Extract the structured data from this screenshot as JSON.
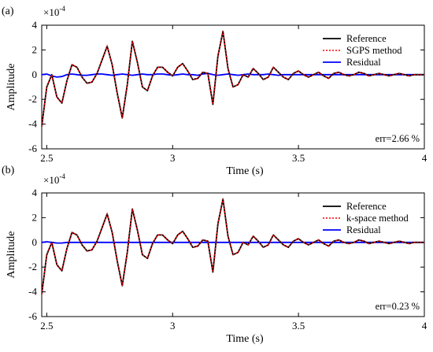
{
  "chart_data": [
    {
      "type": "line",
      "panel_label": "(a)",
      "exponent_label": "×10",
      "exponent_power": "-4",
      "xlabel": "Time (s)",
      "ylabel": "Amplitude",
      "xlim": [
        2.48,
        4.0
      ],
      "ylim": [
        -6,
        4
      ],
      "x_ticks": [
        "2.5",
        "3",
        "3.5",
        "4"
      ],
      "y_ticks": [
        "4",
        "2",
        "0",
        "-2",
        "-4",
        "-6"
      ],
      "x_tick_values": [
        2.5,
        3.0,
        3.5,
        4.0
      ],
      "y_tick_values": [
        4,
        2,
        0,
        -2,
        -4,
        -6
      ],
      "annotation": "err=2.66 %",
      "legend_position": "top-right",
      "series": [
        {
          "name": "Reference",
          "color": "#000000",
          "style": "solid"
        },
        {
          "name": "SGPS method",
          "color": "#ff0000",
          "style": "dotted"
        },
        {
          "name": "Residual",
          "color": "#0000ff",
          "style": "solid"
        }
      ],
      "x": [
        2.48,
        2.5,
        2.52,
        2.54,
        2.56,
        2.58,
        2.6,
        2.62,
        2.64,
        2.66,
        2.68,
        2.7,
        2.72,
        2.74,
        2.76,
        2.78,
        2.8,
        2.82,
        2.84,
        2.86,
        2.88,
        2.9,
        2.92,
        2.94,
        2.96,
        2.98,
        3.0,
        3.02,
        3.04,
        3.06,
        3.08,
        3.1,
        3.12,
        3.14,
        3.16,
        3.18,
        3.2,
        3.22,
        3.24,
        3.26,
        3.28,
        3.3,
        3.32,
        3.34,
        3.36,
        3.38,
        3.4,
        3.42,
        3.44,
        3.46,
        3.48,
        3.5,
        3.52,
        3.54,
        3.56,
        3.58,
        3.6,
        3.62,
        3.64,
        3.66,
        3.68,
        3.7,
        3.72,
        3.74,
        3.76,
        3.78,
        3.8,
        3.82,
        3.84,
        3.86,
        3.88,
        3.9,
        3.92,
        3.94,
        3.96,
        3.98,
        4.0
      ],
      "y_reference": [
        -4.2,
        -1.0,
        0.0,
        -1.8,
        -2.3,
        -0.5,
        0.8,
        0.6,
        -0.2,
        -0.7,
        -0.6,
        0.1,
        1.2,
        2.3,
        0.8,
        -1.5,
        -3.5,
        -0.8,
        2.7,
        1.0,
        -1.0,
        -1.3,
        -0.1,
        0.6,
        0.6,
        0.2,
        -0.1,
        0.6,
        0.9,
        0.3,
        -0.4,
        -0.3,
        0.2,
        0.1,
        -2.4,
        1.5,
        3.5,
        0.5,
        -1.0,
        -0.8,
        0.0,
        -0.2,
        0.5,
        0.1,
        -0.4,
        -0.2,
        0.6,
        0.2,
        -0.2,
        -0.4,
        0.1,
        0.3,
        0.0,
        -0.2,
        0.0,
        0.2,
        -0.1,
        -0.3,
        0.1,
        0.2,
        0.0,
        -0.1,
        0.0,
        0.2,
        0.1,
        -0.1,
        0.0,
        0.1,
        0.0,
        -0.1,
        0.0,
        0.1,
        0.0,
        -0.1,
        0.0,
        0.0,
        0.0
      ],
      "y_method": [
        -4.2,
        -1.0,
        0.0,
        -1.8,
        -2.3,
        -0.5,
        0.8,
        0.6,
        -0.2,
        -0.7,
        -0.6,
        0.1,
        1.2,
        2.3,
        0.8,
        -1.5,
        -3.5,
        -0.8,
        2.7,
        1.0,
        -1.0,
        -1.3,
        -0.1,
        0.6,
        0.6,
        0.2,
        -0.1,
        0.6,
        0.9,
        0.3,
        -0.4,
        -0.3,
        0.2,
        0.1,
        -2.4,
        1.5,
        3.5,
        0.5,
        -1.0,
        -0.8,
        0.0,
        -0.2,
        0.5,
        0.1,
        -0.4,
        -0.2,
        0.6,
        0.2,
        -0.2,
        -0.4,
        0.1,
        0.3,
        0.0,
        -0.2,
        0.0,
        0.2,
        -0.1,
        -0.3,
        0.1,
        0.2,
        0.0,
        -0.1,
        0.0,
        0.2,
        0.1,
        -0.1,
        0.0,
        0.1,
        0.0,
        -0.1,
        0.0,
        0.1,
        0.0,
        -0.1,
        0.0,
        0.0,
        0.0
      ],
      "y_residual": [
        0.0,
        0.05,
        -0.1,
        -0.2,
        -0.15,
        0.0,
        0.05,
        0.0,
        -0.05,
        -0.05,
        0.0,
        0.05,
        0.05,
        0.0,
        -0.05,
        0.0,
        0.05,
        0.0,
        -0.05,
        0.0,
        0.05,
        0.0,
        0.0,
        0.05,
        0.05,
        0.0,
        -0.05,
        0.0,
        0.05,
        0.0,
        0.0,
        -0.05,
        0.05,
        0.1,
        0.0,
        -0.05,
        0.0,
        0.05,
        0.0,
        -0.05,
        0.0,
        0.05,
        0.0,
        0.0,
        0.0,
        0.05,
        0.0,
        -0.05,
        0.0,
        0.0,
        0.0,
        0.0,
        0.0,
        0.0,
        0.0,
        0.0,
        0.0,
        0.0,
        0.0,
        0.0,
        0.0,
        0.0,
        0.0,
        0.0,
        0.0,
        0.0,
        0.0,
        0.0,
        0.0,
        0.0,
        0.0,
        0.0,
        0.0,
        0.0,
        0.0,
        0.0,
        0.0
      ]
    },
    {
      "type": "line",
      "panel_label": "(b)",
      "exponent_label": "×10",
      "exponent_power": "-4",
      "xlabel": "Time (s)",
      "ylabel": "Amplitude",
      "xlim": [
        2.48,
        4.0
      ],
      "ylim": [
        -6,
        4
      ],
      "x_ticks": [
        "2.5",
        "3",
        "3.5",
        "4"
      ],
      "y_ticks": [
        "4",
        "2",
        "0",
        "-2",
        "-4",
        "-6"
      ],
      "x_tick_values": [
        2.5,
        3.0,
        3.5,
        4.0
      ],
      "y_tick_values": [
        4,
        2,
        0,
        -2,
        -4,
        -6
      ],
      "annotation": "err=0.23 %",
      "legend_position": "top-right",
      "series": [
        {
          "name": "Reference",
          "color": "#000000",
          "style": "solid"
        },
        {
          "name": "k-space method",
          "color": "#ff0000",
          "style": "dotted"
        },
        {
          "name": "Residual",
          "color": "#0000ff",
          "style": "solid"
        }
      ],
      "x": [
        2.48,
        2.5,
        2.52,
        2.54,
        2.56,
        2.58,
        2.6,
        2.62,
        2.64,
        2.66,
        2.68,
        2.7,
        2.72,
        2.74,
        2.76,
        2.78,
        2.8,
        2.82,
        2.84,
        2.86,
        2.88,
        2.9,
        2.92,
        2.94,
        2.96,
        2.98,
        3.0,
        3.02,
        3.04,
        3.06,
        3.08,
        3.1,
        3.12,
        3.14,
        3.16,
        3.18,
        3.2,
        3.22,
        3.24,
        3.26,
        3.28,
        3.3,
        3.32,
        3.34,
        3.36,
        3.38,
        3.4,
        3.42,
        3.44,
        3.46,
        3.48,
        3.5,
        3.52,
        3.54,
        3.56,
        3.58,
        3.6,
        3.62,
        3.64,
        3.66,
        3.68,
        3.7,
        3.72,
        3.74,
        3.76,
        3.78,
        3.8,
        3.82,
        3.84,
        3.86,
        3.88,
        3.9,
        3.92,
        3.94,
        3.96,
        3.98,
        4.0
      ],
      "y_reference": [
        -4.2,
        -1.0,
        0.0,
        -1.8,
        -2.3,
        -0.5,
        0.8,
        0.6,
        -0.2,
        -0.7,
        -0.6,
        0.1,
        1.2,
        2.3,
        0.8,
        -1.5,
        -3.5,
        -0.8,
        2.7,
        1.0,
        -1.0,
        -1.3,
        -0.1,
        0.6,
        0.6,
        0.2,
        -0.1,
        0.6,
        0.9,
        0.3,
        -0.4,
        -0.3,
        0.2,
        0.1,
        -2.4,
        1.5,
        3.5,
        0.5,
        -1.0,
        -0.8,
        0.0,
        -0.2,
        0.5,
        0.1,
        -0.4,
        -0.2,
        0.6,
        0.2,
        -0.2,
        -0.4,
        0.1,
        0.3,
        0.0,
        -0.2,
        0.0,
        0.2,
        -0.1,
        -0.3,
        0.1,
        0.2,
        0.0,
        -0.1,
        0.0,
        0.2,
        0.1,
        -0.1,
        0.0,
        0.1,
        0.0,
        -0.1,
        0.0,
        0.1,
        0.0,
        -0.1,
        0.0,
        0.0,
        0.0
      ],
      "y_method": [
        -4.2,
        -1.0,
        0.0,
        -1.8,
        -2.3,
        -0.5,
        0.8,
        0.6,
        -0.2,
        -0.7,
        -0.6,
        0.1,
        1.2,
        2.3,
        0.8,
        -1.5,
        -3.5,
        -0.8,
        2.7,
        1.0,
        -1.0,
        -1.3,
        -0.1,
        0.6,
        0.6,
        0.2,
        -0.1,
        0.6,
        0.9,
        0.3,
        -0.4,
        -0.3,
        0.2,
        0.1,
        -2.4,
        1.5,
        3.5,
        0.5,
        -1.0,
        -0.8,
        0.0,
        -0.2,
        0.5,
        0.1,
        -0.4,
        -0.2,
        0.6,
        0.2,
        -0.2,
        -0.4,
        0.1,
        0.3,
        0.0,
        -0.2,
        0.0,
        0.2,
        -0.1,
        -0.3,
        0.1,
        0.2,
        0.0,
        -0.1,
        0.0,
        0.2,
        0.1,
        -0.1,
        0.0,
        0.1,
        0.0,
        -0.1,
        0.0,
        0.1,
        0.0,
        -0.1,
        0.0,
        0.0,
        0.0
      ],
      "y_residual": [
        0.0,
        0.05,
        0.0,
        -0.05,
        -0.05,
        0.0,
        0.0,
        0.0,
        0.0,
        0.0,
        0.0,
        0.0,
        0.0,
        0.0,
        0.0,
        0.0,
        0.0,
        0.0,
        0.0,
        0.0,
        0.0,
        0.0,
        0.0,
        0.0,
        0.0,
        0.0,
        0.0,
        0.0,
        0.0,
        0.0,
        0.0,
        0.0,
        0.0,
        0.0,
        0.0,
        0.0,
        0.0,
        0.0,
        0.0,
        0.0,
        0.0,
        0.0,
        0.0,
        0.0,
        0.0,
        0.0,
        0.0,
        0.0,
        0.0,
        0.0,
        0.0,
        0.0,
        0.0,
        0.0,
        0.0,
        0.0,
        0.0,
        0.0,
        0.0,
        0.0,
        0.0,
        0.0,
        0.0,
        0.0,
        0.0,
        0.0,
        0.0,
        0.0,
        0.0,
        0.0,
        0.0,
        0.0,
        0.0,
        0.0,
        0.0,
        0.0,
        0.0
      ]
    }
  ]
}
